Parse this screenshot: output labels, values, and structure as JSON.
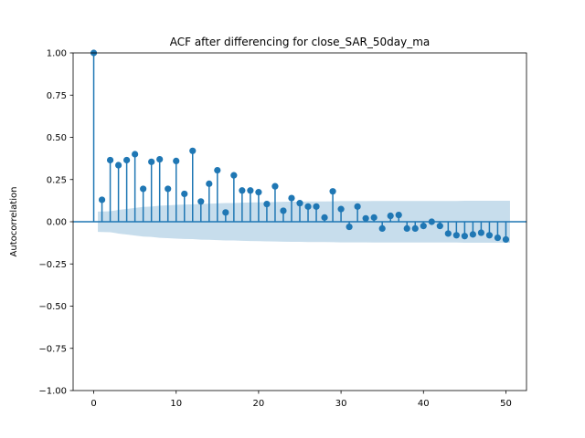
{
  "chart_data": {
    "type": "stem",
    "title": "ACF after differencing for close_SAR_50day_ma",
    "xlabel": "",
    "ylabel": "Autocorrelation",
    "xlim": [
      -2.5,
      52.5
    ],
    "ylim": [
      -1.0,
      1.0
    ],
    "xticks": [
      0,
      10,
      20,
      30,
      40,
      50
    ],
    "yticks": [
      -1.0,
      -0.75,
      -0.5,
      -0.25,
      0.0,
      0.25,
      0.5,
      0.75,
      1.0
    ],
    "xtick_labels": [
      "0",
      "10",
      "20",
      "30",
      "40",
      "50"
    ],
    "ytick_labels": [
      "−1.00",
      "−0.75",
      "−0.50",
      "−0.25",
      "0.00",
      "0.25",
      "0.50",
      "0.75",
      "1.00"
    ],
    "grid": false,
    "colors": {
      "marker": "#1f77b4",
      "band": "#1f77b4",
      "axes": "#000000"
    },
    "lags": [
      0,
      1,
      2,
      3,
      4,
      5,
      6,
      7,
      8,
      9,
      10,
      11,
      12,
      13,
      14,
      15,
      16,
      17,
      18,
      19,
      20,
      21,
      22,
      23,
      24,
      25,
      26,
      27,
      28,
      29,
      30,
      31,
      32,
      33,
      34,
      35,
      36,
      37,
      38,
      39,
      40,
      41,
      42,
      43,
      44,
      45,
      46,
      47,
      48,
      49,
      50
    ],
    "acf": [
      1.0,
      0.13,
      0.365,
      0.335,
      0.365,
      0.4,
      0.195,
      0.355,
      0.37,
      0.195,
      0.36,
      0.165,
      0.42,
      0.12,
      0.225,
      0.305,
      0.055,
      0.275,
      0.185,
      0.185,
      0.175,
      0.105,
      0.21,
      0.065,
      0.14,
      0.11,
      0.09,
      0.09,
      0.025,
      0.18,
      0.075,
      -0.03,
      0.09,
      0.02,
      0.025,
      -0.04,
      0.035,
      0.04,
      -0.04,
      -0.04,
      -0.025,
      0.0,
      -0.025,
      -0.07,
      -0.08,
      -0.085,
      -0.075,
      -0.065,
      -0.08,
      -0.095,
      -0.105
    ],
    "confint_halfwidth": [
      0.0,
      0.06,
      0.062,
      0.07,
      0.076,
      0.082,
      0.088,
      0.09,
      0.095,
      0.097,
      0.1,
      0.102,
      0.103,
      0.106,
      0.107,
      0.109,
      0.111,
      0.111,
      0.113,
      0.114,
      0.115,
      0.116,
      0.117,
      0.118,
      0.119,
      0.119,
      0.12,
      0.12,
      0.12,
      0.121,
      0.122,
      0.122,
      0.122,
      0.122,
      0.123,
      0.123,
      0.123,
      0.123,
      0.123,
      0.123,
      0.123,
      0.123,
      0.123,
      0.123,
      0.123,
      0.124,
      0.124,
      0.124,
      0.124,
      0.124,
      0.124
    ]
  }
}
